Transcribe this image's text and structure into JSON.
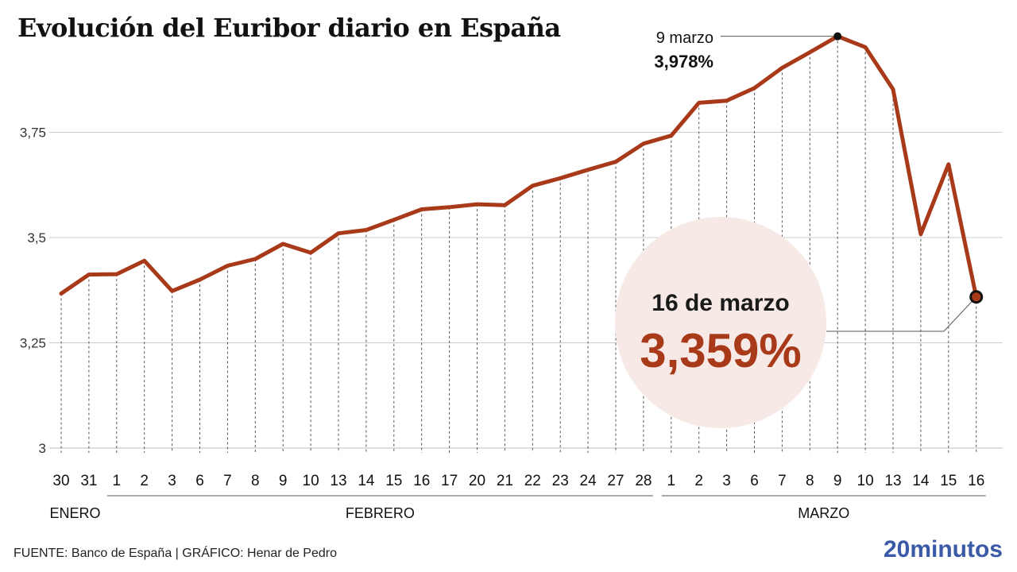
{
  "colors": {
    "line": "#a83a1a",
    "highlight_circle": "#f6e9e6",
    "big_value": "#a83a1a",
    "logo": "#3a5aa8",
    "grid": "#cccccc"
  },
  "source": "FUENTE: Banco de España  |  GRÁFICO: Henar de Pedro",
  "logo": "20minutos",
  "annotations": {
    "peak": {
      "date": "9 marzo",
      "value": "3,978%"
    },
    "last": {
      "date": "16 de marzo",
      "value": "3,359%"
    }
  },
  "chart_data": {
    "type": "line",
    "title": "Evolución del Euribor diario en España",
    "xlabel": "",
    "ylabel": "",
    "ylim": [
      3,
      3.978
    ],
    "yticks": [
      {
        "value": 3,
        "label": "3"
      },
      {
        "value": 3.25,
        "label": "3,25"
      },
      {
        "value": 3.5,
        "label": "3,5"
      },
      {
        "value": 3.75,
        "label": "3,75"
      }
    ],
    "grid": true,
    "months": [
      {
        "label": "ENERO",
        "from": 0,
        "to": 1
      },
      {
        "label": "FEBRERO",
        "from": 2,
        "to": 21
      },
      {
        "label": "MARZO",
        "from": 22,
        "to": 33
      }
    ],
    "categories": [
      "30",
      "31",
      "1",
      "2",
      "3",
      "6",
      "7",
      "8",
      "9",
      "10",
      "13",
      "14",
      "15",
      "16",
      "17",
      "20",
      "21",
      "22",
      "23",
      "24",
      "27",
      "28",
      "1",
      "2",
      "3",
      "6",
      "7",
      "8",
      "9",
      "10",
      "13",
      "14",
      "15",
      "16"
    ],
    "series": [
      {
        "values": [
          3.367,
          3.412,
          3.413,
          3.445,
          3.373,
          3.4,
          3.433,
          3.449,
          3.485,
          3.464,
          3.51,
          3.518,
          3.542,
          3.567,
          3.572,
          3.579,
          3.577,
          3.623,
          3.641,
          3.661,
          3.68,
          3.723,
          3.742,
          3.82,
          3.825,
          3.855,
          3.903,
          3.94,
          3.978,
          3.952,
          3.852,
          3.508,
          3.674,
          3.359
        ]
      }
    ]
  }
}
